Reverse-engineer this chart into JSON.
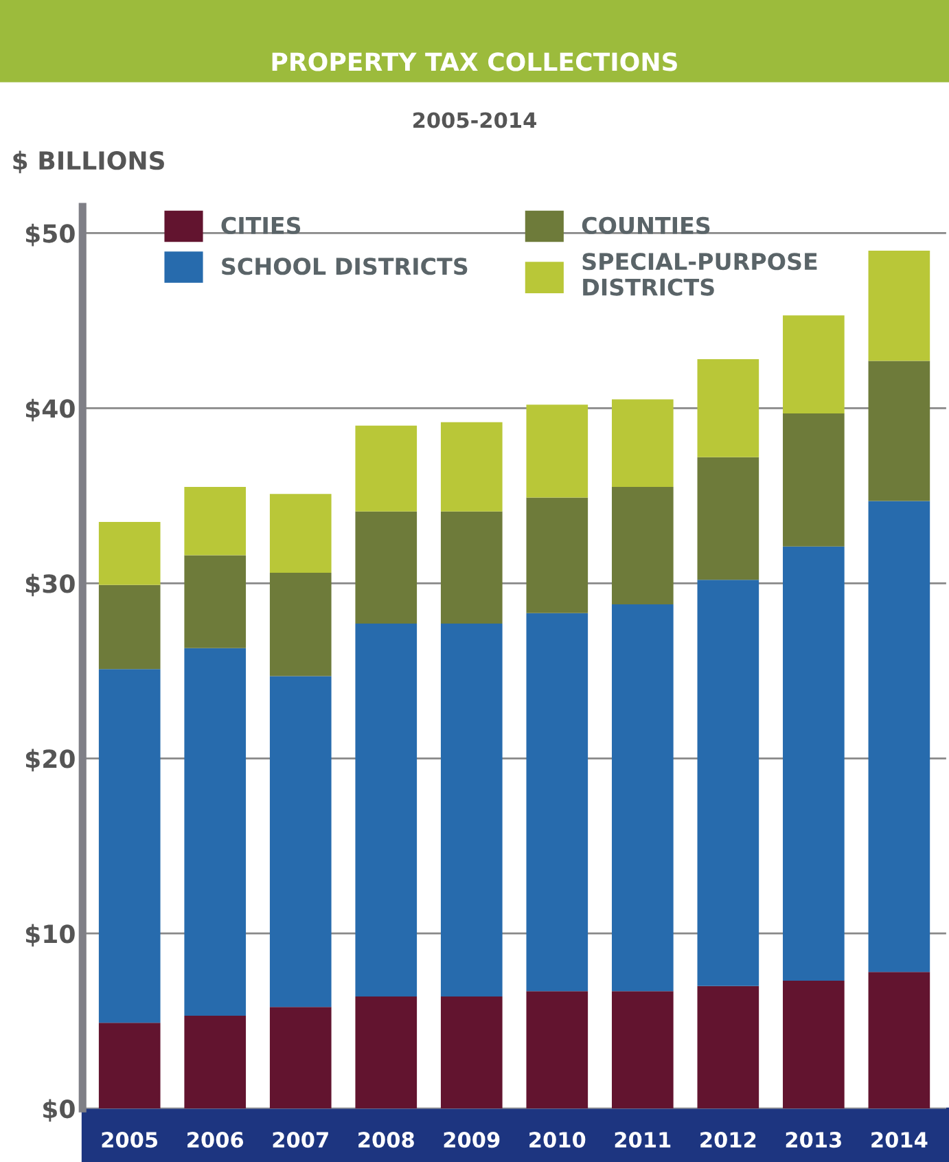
{
  "chart_data": {
    "type": "bar",
    "title": "PROPERTY TAX COLLECTIONS",
    "subtitle": "2005-2014",
    "ylabel": "$ BILLIONS",
    "stacked": true,
    "categories": [
      "2005",
      "2006",
      "2007",
      "2008",
      "2009",
      "2010",
      "2011",
      "2012",
      "2013",
      "2014"
    ],
    "series": [
      {
        "name": "CITIES",
        "color": "#62142f",
        "values": [
          4.9,
          5.3,
          5.8,
          6.4,
          6.4,
          6.7,
          6.7,
          7.0,
          7.3,
          7.8
        ]
      },
      {
        "name": "SCHOOL DISTRICTS",
        "color": "#276bad",
        "values": [
          20.2,
          21.0,
          18.9,
          21.3,
          21.3,
          21.6,
          22.1,
          23.2,
          24.8,
          26.9
        ]
      },
      {
        "name": "COUNTIES",
        "color": "#6e7b3a",
        "values": [
          4.8,
          5.3,
          5.9,
          6.4,
          6.4,
          6.6,
          6.7,
          7.0,
          7.6,
          8.0
        ]
      },
      {
        "name": "SPECIAL-PURPOSE\nDISTRICTS",
        "color": "#b9c738",
        "values": [
          3.6,
          3.9,
          4.5,
          4.9,
          5.1,
          5.3,
          5.0,
          5.6,
          5.6,
          6.3
        ]
      }
    ],
    "ylim": [
      0,
      51.5
    ],
    "yticks": [
      {
        "value": 0,
        "label": "$0"
      },
      {
        "value": 10,
        "label": "$10"
      },
      {
        "value": 20,
        "label": "$20"
      },
      {
        "value": 30,
        "label": "$30"
      },
      {
        "value": 40,
        "label": "$40"
      },
      {
        "value": 50,
        "label": "$50"
      }
    ],
    "grid": "y",
    "legend": "top left"
  }
}
